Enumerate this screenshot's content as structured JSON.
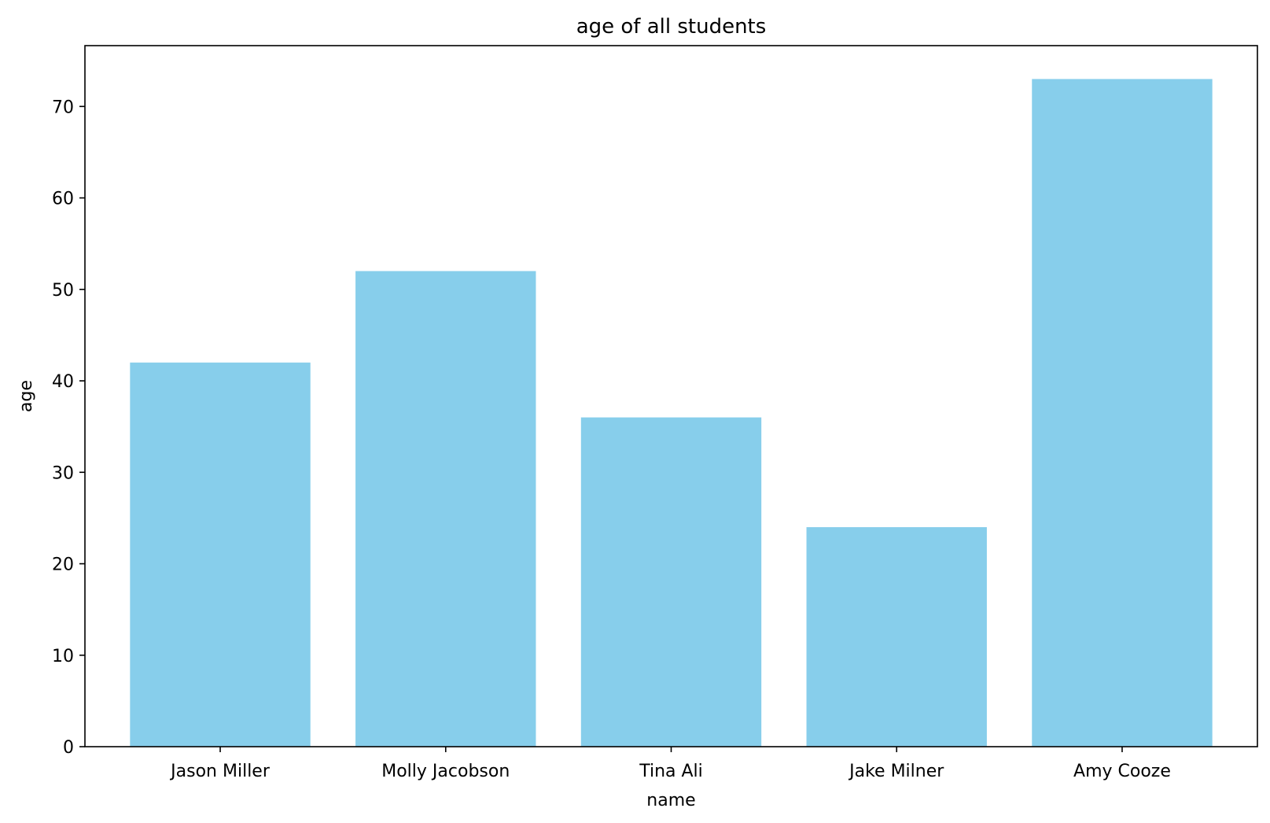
{
  "chart_data": {
    "type": "bar",
    "title": "age of all students",
    "xlabel": "name",
    "ylabel": "age",
    "categories": [
      "Jason Miller",
      "Molly Jacobson",
      "Tina Ali",
      "Jake Milner",
      "Amy Cooze"
    ],
    "values": [
      42,
      52,
      36,
      24,
      73
    ],
    "ylim": [
      0,
      76.65
    ],
    "yticks": [
      "0",
      "10",
      "20",
      "30",
      "40",
      "50",
      "60",
      "70"
    ],
    "grid": false,
    "bar_color": "#87CEEB",
    "axis_color": "#000000"
  }
}
